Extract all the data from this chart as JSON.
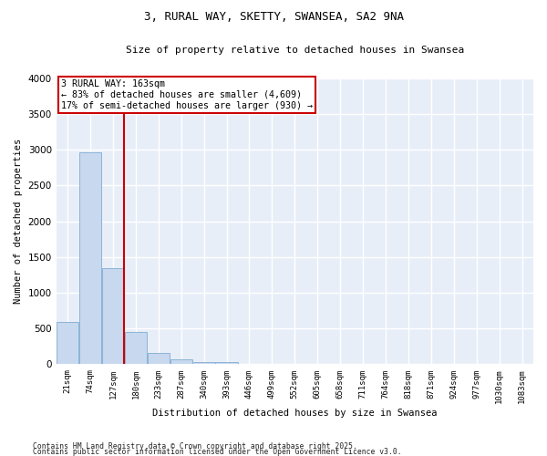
{
  "title": "3, RURAL WAY, SKETTY, SWANSEA, SA2 9NA",
  "subtitle": "Size of property relative to detached houses in Swansea",
  "xlabel": "Distribution of detached houses by size in Swansea",
  "ylabel": "Number of detached properties",
  "categories": [
    "21sqm",
    "74sqm",
    "127sqm",
    "180sqm",
    "233sqm",
    "287sqm",
    "340sqm",
    "393sqm",
    "446sqm",
    "499sqm",
    "552sqm",
    "605sqm",
    "658sqm",
    "711sqm",
    "764sqm",
    "818sqm",
    "871sqm",
    "924sqm",
    "977sqm",
    "1030sqm",
    "1083sqm"
  ],
  "values": [
    590,
    2970,
    1350,
    450,
    165,
    75,
    35,
    25,
    0,
    0,
    0,
    0,
    0,
    0,
    0,
    0,
    0,
    0,
    0,
    0,
    0
  ],
  "bar_color": "#c8d8ee",
  "bar_edgecolor": "#8ab4d8",
  "vline_x": 2.5,
  "vline_color": "#cc0000",
  "annotation_title": "3 RURAL WAY: 163sqm",
  "annotation_line1": "← 83% of detached houses are smaller (4,609)",
  "annotation_line2": "17% of semi-detached houses are larger (930) →",
  "annotation_box_color": "#cc0000",
  "ylim": [
    0,
    4000
  ],
  "yticks": [
    0,
    500,
    1000,
    1500,
    2000,
    2500,
    3000,
    3500,
    4000
  ],
  "background_color": "#e8eef8",
  "grid_color": "#ffffff",
  "footnote1": "Contains HM Land Registry data © Crown copyright and database right 2025.",
  "footnote2": "Contains public sector information licensed under the Open Government Licence v3.0."
}
